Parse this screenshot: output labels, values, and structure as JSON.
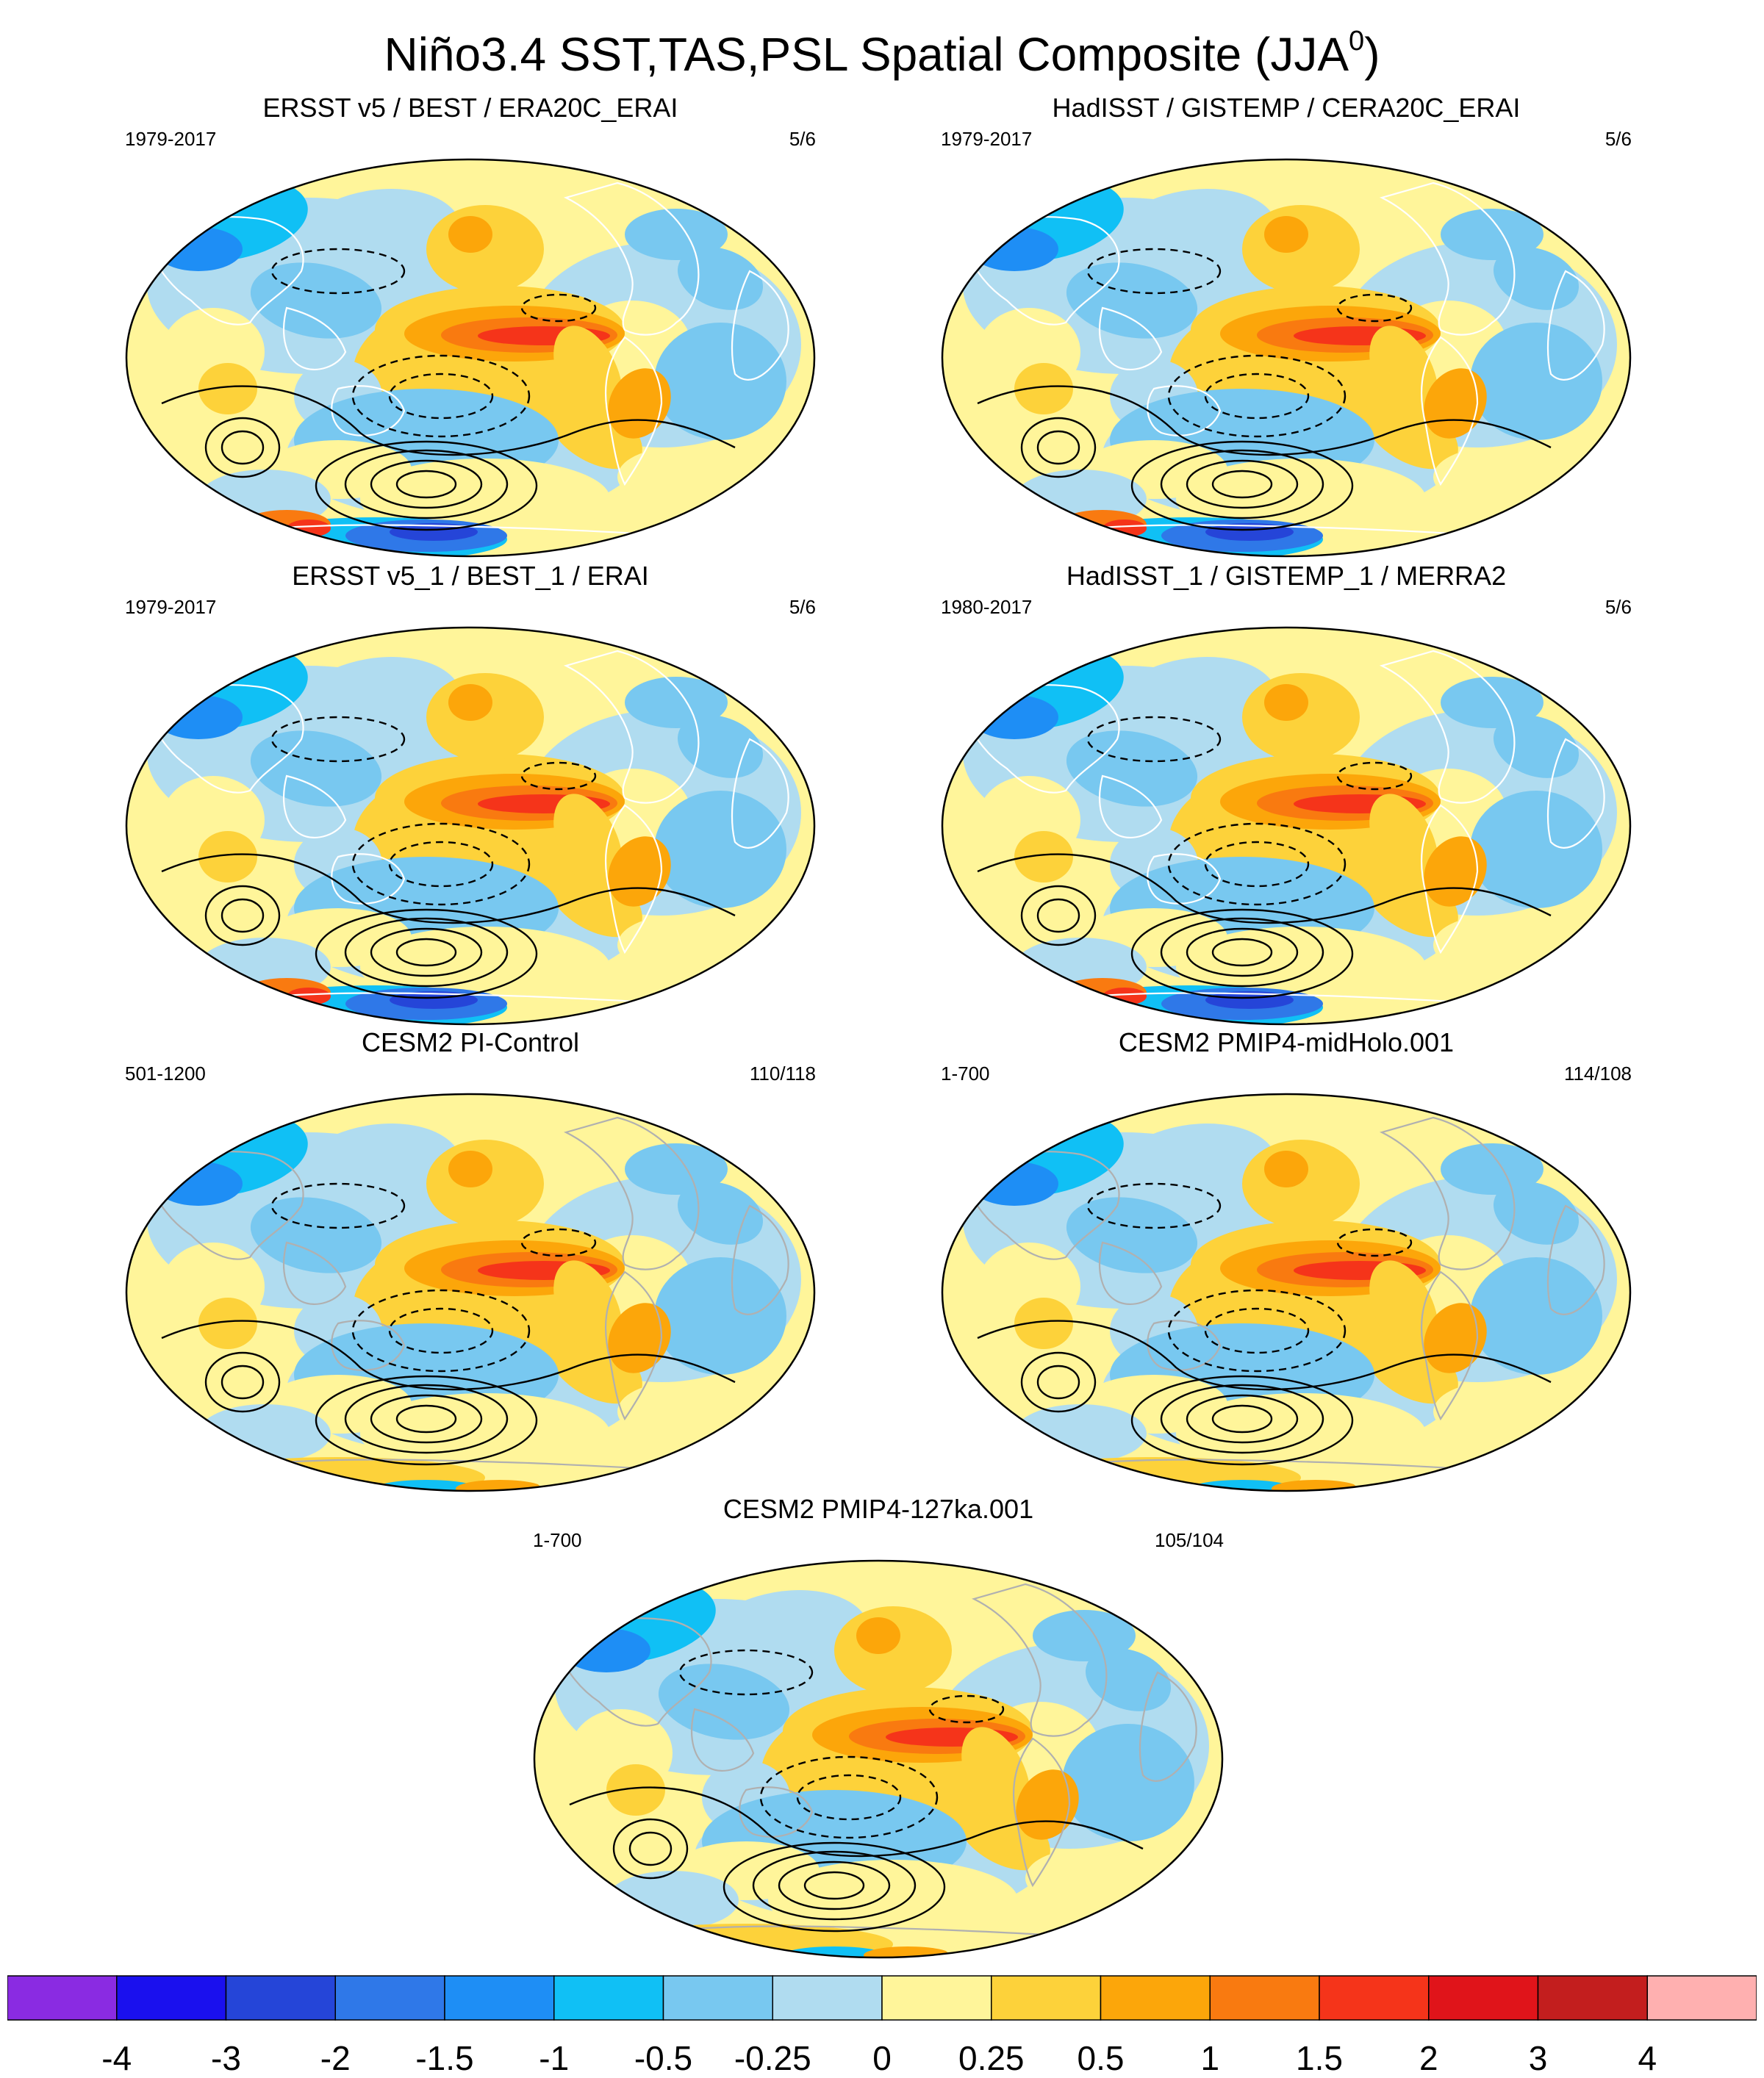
{
  "figure": {
    "title": "Niño3.4 SST,TAS,PSL Spatial Composite (JJA",
    "title_superscript": "0",
    "title_suffix": ")"
  },
  "panels": [
    {
      "title": "ERSST v5 / BEST / ERA20C_ERAI",
      "period": "1979-2017",
      "count": "5/6",
      "variant": "obs_a"
    },
    {
      "title": "HadISST / GISTEMP / CERA20C_ERAI",
      "period": "1979-2017",
      "count": "5/6",
      "variant": "obs_b"
    },
    {
      "title": "ERSST v5_1 / BEST_1 / ERAI",
      "period": "1979-2017",
      "count": "5/6",
      "variant": "obs_a"
    },
    {
      "title": "HadISST_1 / GISTEMP_1 / MERRA2",
      "period": "1980-2017",
      "count": "5/6",
      "variant": "obs_b"
    },
    {
      "title": "CESM2 PI-Control",
      "period": "501-1200",
      "count": "110/118",
      "variant": "model"
    },
    {
      "title": "CESM2 PMIP4-midHolo.001",
      "period": "1-700",
      "count": "114/108",
      "variant": "model"
    },
    {
      "title": "CESM2 PMIP4-127ka.001",
      "period": "1-700",
      "count": "105/104",
      "variant": "model"
    }
  ],
  "colorbar": {
    "labels": [
      "-4",
      "-3",
      "-2",
      "-1.5",
      "-1",
      "-0.5",
      "-0.25",
      "0",
      "0.25",
      "0.5",
      "1",
      "1.5",
      "2",
      "3",
      "4"
    ],
    "colors": [
      "#8a2be2",
      "#1a10ee",
      "#2545d8",
      "#2f78e8",
      "#1e8ef5",
      "#10c0f5",
      "#78c8f0",
      "#b0dcf0",
      "#fff59a",
      "#fdd23a",
      "#fca60a",
      "#f97a10",
      "#f5341a",
      "#e0141a",
      "#c31e1e",
      "#ffb0b0"
    ]
  }
}
